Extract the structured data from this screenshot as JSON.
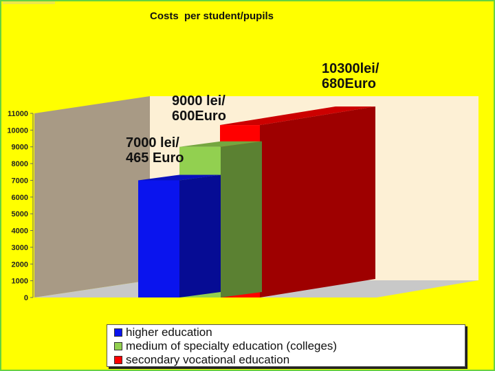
{
  "page": {
    "background": "#ffff00",
    "border_color": "#66d240"
  },
  "chart_data": {
    "type": "bar",
    "style": "3d-column",
    "title": "Costs  per student/pupils",
    "xlabel": "",
    "ylabel": "",
    "ylim": [
      0,
      11000
    ],
    "yticks": [
      0,
      1000,
      2000,
      3000,
      4000,
      5000,
      6000,
      7000,
      8000,
      9000,
      10000,
      11000
    ],
    "grid": false,
    "legend_position": "bottom",
    "walls": {
      "back_wall": "#fdf0d5",
      "side_wall": "#a89a85",
      "floor": "#c8c8c8"
    },
    "series": [
      {
        "name": "higher education",
        "values": [
          7000
        ],
        "color": "#0a14ee",
        "data_label": [
          "7000 lei/",
          "465 Euro"
        ]
      },
      {
        "name": "medium of specialty education (colleges)",
        "values": [
          9000
        ],
        "color": "#92d050",
        "data_label": [
          "9000 lei/",
          "600Euro"
        ]
      },
      {
        "name": "secondary vocational education",
        "values": [
          10300
        ],
        "color": "#ff0000",
        "data_label": [
          "10300lei/",
          "680Euro"
        ]
      }
    ]
  }
}
